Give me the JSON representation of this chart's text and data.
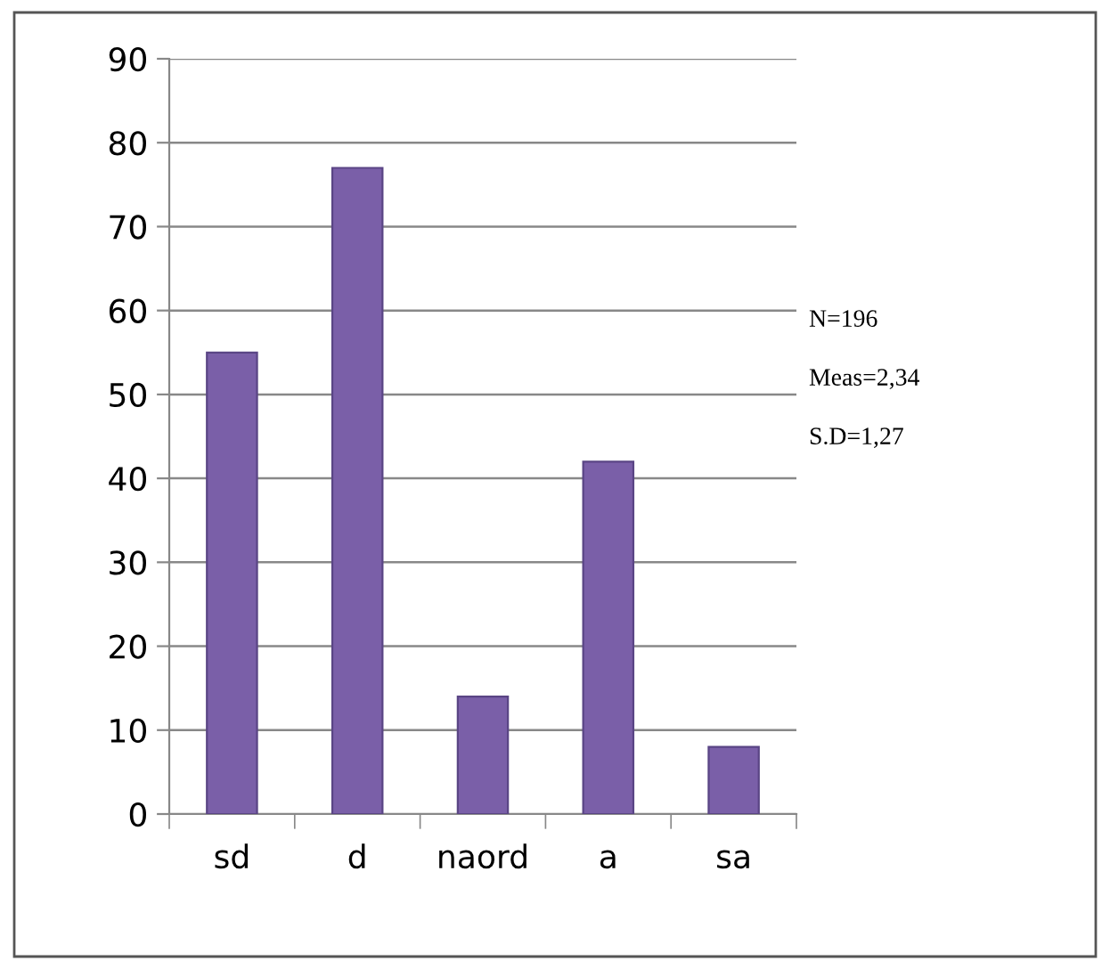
{
  "chart_data": {
    "type": "bar",
    "categories": [
      "sd",
      "d",
      "naord",
      "a",
      "sa"
    ],
    "values": [
      55,
      77,
      14,
      42,
      8
    ],
    "color": "#7a5fa8",
    "ylim": [
      0,
      90
    ],
    "yticks": [
      0,
      10,
      20,
      30,
      40,
      50,
      60,
      70,
      80,
      90
    ],
    "grid": "y",
    "annotations": [
      "N=196",
      "Meas=2,34",
      "S.D=1,27"
    ]
  }
}
